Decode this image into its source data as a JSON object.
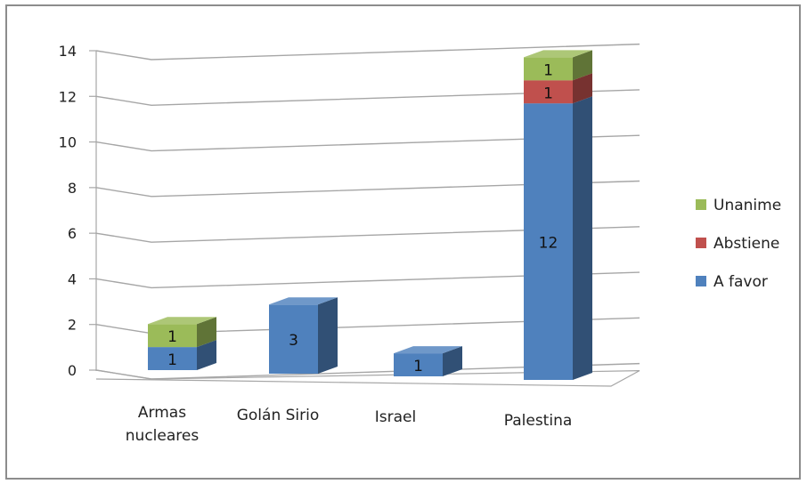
{
  "chart_data": {
    "type": "bar",
    "stacked": true,
    "three_d": true,
    "title": "",
    "xlabel": "",
    "ylabel": "",
    "ylim": [
      0,
      14
    ],
    "y_ticks": [
      "0",
      "2",
      "4",
      "6",
      "8",
      "10",
      "12",
      "14"
    ],
    "categories": [
      [
        "Armas",
        "nucleares"
      ],
      [
        "Golán Sirio"
      ],
      [
        "Israel"
      ],
      [
        "Palestina"
      ]
    ],
    "series": [
      {
        "name": "A favor",
        "color": "#4f81bd",
        "values": [
          1,
          3,
          1,
          12
        ]
      },
      {
        "name": "Abstiene",
        "color": "#c0504d",
        "values": [
          0,
          0,
          0,
          1
        ]
      },
      {
        "name": "Unanime",
        "color": "#9bbb59",
        "values": [
          1,
          0,
          0,
          1
        ]
      }
    ],
    "data_labels": [
      [
        "1",
        "3",
        "1",
        "12"
      ],
      [
        "",
        "",
        "",
        "1"
      ],
      [
        "1",
        "",
        "",
        "1"
      ]
    ],
    "grid": true,
    "legend_position": "right",
    "legend_order": [
      "Unanime",
      "Abstiene",
      "A favor"
    ]
  }
}
